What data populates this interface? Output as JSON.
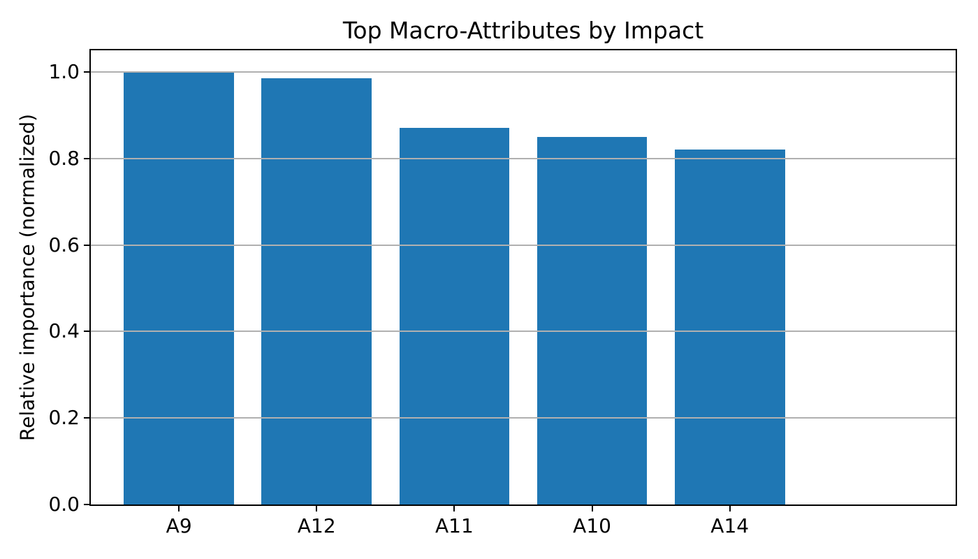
{
  "chart_data": {
    "type": "bar",
    "title": "Top Macro-Attributes by Impact",
    "xlabel": "",
    "ylabel": "Relative importance (normalized)",
    "categories": [
      "A9",
      "A12",
      "A11",
      "A10",
      "A14"
    ],
    "values": [
      1.0,
      0.985,
      0.87,
      0.85,
      0.82
    ],
    "yticks": [
      0.0,
      0.2,
      0.4,
      0.6,
      0.8,
      1.0
    ],
    "ytick_labels": [
      "0.0",
      "0.2",
      "0.4",
      "0.6",
      "0.8",
      "1.0"
    ],
    "ylim": [
      0,
      1.05
    ],
    "grid": "horizontal gridlines at y ticks, drawn above bars",
    "legend": "none",
    "colors": {
      "bar": "#1f77b4",
      "gridline": "#b0b0b0",
      "spine": "#000000",
      "text": "#000000",
      "background": "#ffffff"
    }
  }
}
